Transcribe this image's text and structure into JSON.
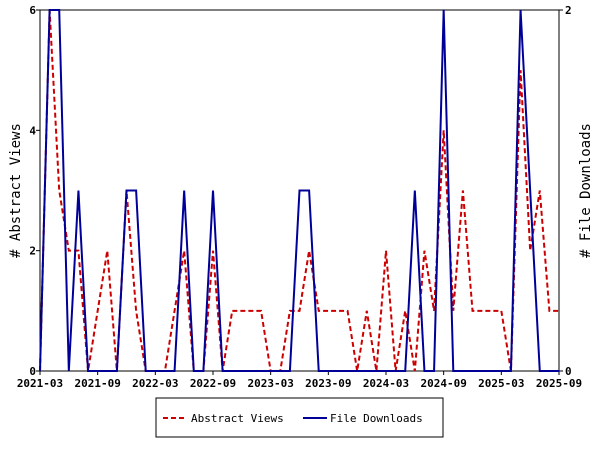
{
  "chart_data": {
    "type": "line",
    "x_tick_labels": [
      "2021-03",
      "2021-09",
      "2022-03",
      "2022-09",
      "2023-03",
      "2023-09",
      "2024-03",
      "2024-09",
      "2025-03",
      "2025-09"
    ],
    "x_range": [
      "2021-03",
      "2025-09"
    ],
    "y_left": {
      "label": "# Abstract Views",
      "range": [
        0,
        6
      ],
      "ticks": [
        0,
        2,
        4,
        6
      ]
    },
    "y_right": {
      "label": "# File Downloads",
      "range": [
        0,
        2
      ],
      "ticks": [
        0,
        2
      ]
    },
    "grid": false,
    "legend_position": "bottom",
    "series": [
      {
        "name": "Abstract Views",
        "axis": "left",
        "color": "#cc0000",
        "style": "dashed",
        "x": [
          "2021-03",
          "2021-04",
          "2021-05",
          "2021-06",
          "2021-07",
          "2021-08",
          "2021-09",
          "2021-10",
          "2021-11",
          "2021-12",
          "2022-01",
          "2022-02",
          "2022-03",
          "2022-04",
          "2022-05",
          "2022-06",
          "2022-07",
          "2022-08",
          "2022-09",
          "2022-10",
          "2022-11",
          "2022-12",
          "2023-01",
          "2023-02",
          "2023-03",
          "2023-04",
          "2023-05",
          "2023-06",
          "2023-07",
          "2023-08",
          "2023-09",
          "2023-10",
          "2023-11",
          "2023-12",
          "2024-01",
          "2024-02",
          "2024-03",
          "2024-04",
          "2024-05",
          "2024-06",
          "2024-07",
          "2024-08",
          "2024-09",
          "2024-10",
          "2024-11",
          "2024-12",
          "2025-01",
          "2025-02",
          "2025-03",
          "2025-04",
          "2025-05",
          "2025-06",
          "2025-07",
          "2025-08",
          "2025-09"
        ],
        "y": [
          0,
          6,
          3,
          2,
          2,
          0,
          1,
          2,
          0,
          3,
          1,
          0,
          0,
          0,
          1,
          2,
          0,
          0,
          2,
          0,
          1,
          1,
          1,
          1,
          0,
          0,
          1,
          1,
          2,
          1,
          1,
          1,
          1,
          0,
          1,
          0,
          2,
          0,
          1,
          0,
          2,
          1,
          4,
          1,
          3,
          1,
          1,
          1,
          1,
          0,
          5,
          2,
          3,
          1,
          1
        ]
      },
      {
        "name": "File Downloads",
        "axis": "right",
        "color": "#000099",
        "style": "solid",
        "x": [
          "2021-03",
          "2021-04",
          "2021-05",
          "2021-06",
          "2021-07",
          "2021-08",
          "2021-09",
          "2021-10",
          "2021-11",
          "2021-12",
          "2022-01",
          "2022-02",
          "2022-03",
          "2022-04",
          "2022-05",
          "2022-06",
          "2022-07",
          "2022-08",
          "2022-09",
          "2022-10",
          "2022-11",
          "2022-12",
          "2023-01",
          "2023-02",
          "2023-03",
          "2023-04",
          "2023-05",
          "2023-06",
          "2023-07",
          "2023-08",
          "2023-09",
          "2023-10",
          "2023-11",
          "2023-12",
          "2024-01",
          "2024-02",
          "2024-03",
          "2024-04",
          "2024-05",
          "2024-06",
          "2024-07",
          "2024-08",
          "2024-09",
          "2024-10",
          "2024-11",
          "2024-12",
          "2025-01",
          "2025-02",
          "2025-03",
          "2025-04",
          "2025-05",
          "2025-06",
          "2025-07",
          "2025-08",
          "2025-09"
        ],
        "y": [
          0,
          2,
          2,
          0,
          1,
          0,
          0,
          0,
          0,
          1,
          1,
          0,
          0,
          0,
          0,
          1,
          0,
          0,
          1,
          0,
          0,
          0,
          0,
          0,
          0,
          0,
          0,
          1,
          1,
          0,
          0,
          0,
          0,
          0,
          0,
          0,
          0,
          0,
          0,
          1,
          0,
          0,
          2,
          0,
          0,
          0,
          0,
          0,
          0,
          0,
          2,
          1,
          0,
          0,
          0
        ]
      }
    ]
  }
}
